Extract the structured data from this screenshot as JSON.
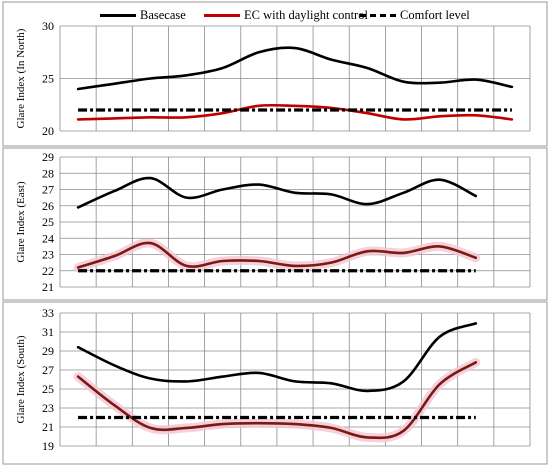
{
  "legend": [
    {
      "name": "Basecase",
      "color": "#000000",
      "style": "solid"
    },
    {
      "name": "EC with daylight control",
      "color": "#c00000",
      "style": "solid"
    },
    {
      "name": "Comfort level",
      "color": "#000000",
      "style": "dash-dot"
    }
  ],
  "chart_data": [
    {
      "type": "line",
      "ylabel": "Glare Index (In North)",
      "ylim": [
        20,
        30
      ],
      "yticks": [
        "20",
        "25",
        "30"
      ],
      "x": [
        0,
        1,
        2,
        3,
        4,
        5,
        6,
        7,
        8,
        9,
        10,
        11,
        12
      ],
      "grid": true,
      "series": [
        {
          "name": "Basecase",
          "color": "#000000",
          "values": [
            24.0,
            24.5,
            25.0,
            25.3,
            26.0,
            27.5,
            27.9,
            26.8,
            26.0,
            24.7,
            24.6,
            24.9,
            24.2
          ]
        },
        {
          "name": "EC with daylight control",
          "color": "#c00000",
          "values": [
            21.1,
            21.2,
            21.3,
            21.3,
            21.7,
            22.4,
            22.4,
            22.2,
            21.7,
            21.1,
            21.4,
            21.5,
            21.1
          ]
        },
        {
          "name": "Comfort level",
          "color": "#000000",
          "dash": true,
          "values": [
            22,
            22,
            22,
            22,
            22,
            22,
            22,
            22,
            22,
            22,
            22,
            22,
            22
          ]
        }
      ]
    },
    {
      "type": "line",
      "ylabel": "Glare Index (East)",
      "ylim": [
        21,
        29
      ],
      "yticks": [
        "21",
        "22",
        "23",
        "24",
        "25",
        "26",
        "27",
        "28",
        "29"
      ],
      "x": [
        0,
        1,
        2,
        3,
        4,
        5,
        6,
        7,
        8,
        9,
        10,
        11,
        12
      ],
      "grid": true,
      "series": [
        {
          "name": "Basecase",
          "color": "#000000",
          "values": [
            25.9,
            26.9,
            27.7,
            26.5,
            27.0,
            27.3,
            26.8,
            26.7,
            26.1,
            26.8,
            27.6,
            26.6,
            null
          ]
        },
        {
          "name": "EC with daylight control",
          "color": "#7a1a10",
          "values": [
            22.2,
            22.9,
            23.7,
            22.3,
            22.6,
            22.6,
            22.3,
            22.5,
            23.2,
            23.1,
            23.5,
            22.8,
            null
          ]
        },
        {
          "name": "Comfort level",
          "color": "#000000",
          "dash": true,
          "values": [
            22,
            22,
            22,
            22,
            22,
            22,
            22,
            22,
            22,
            22,
            22,
            22,
            null
          ]
        }
      ]
    },
    {
      "type": "line",
      "ylabel": "Glare Index (South)",
      "ylim": [
        19,
        33
      ],
      "yticks": [
        "19",
        "21",
        "23",
        "25",
        "27",
        "29",
        "31",
        "33"
      ],
      "x": [
        0,
        1,
        2,
        3,
        4,
        5,
        6,
        7,
        8,
        9,
        10,
        11,
        12
      ],
      "grid": true,
      "series": [
        {
          "name": "Basecase",
          "color": "#000000",
          "values": [
            29.4,
            27.5,
            26.1,
            25.8,
            26.3,
            26.7,
            25.8,
            25.6,
            24.8,
            25.8,
            30.5,
            31.9,
            null
          ]
        },
        {
          "name": "EC with daylight control",
          "color": "#7a1a10",
          "values": [
            26.3,
            23.3,
            20.9,
            20.9,
            21.3,
            21.4,
            21.3,
            20.9,
            19.9,
            20.6,
            25.5,
            27.8,
            null
          ]
        },
        {
          "name": "Comfort level",
          "color": "#000000",
          "dash": true,
          "values": [
            22,
            22,
            22,
            22,
            22,
            22,
            22,
            22,
            22,
            22,
            22,
            22,
            null
          ]
        }
      ]
    }
  ]
}
